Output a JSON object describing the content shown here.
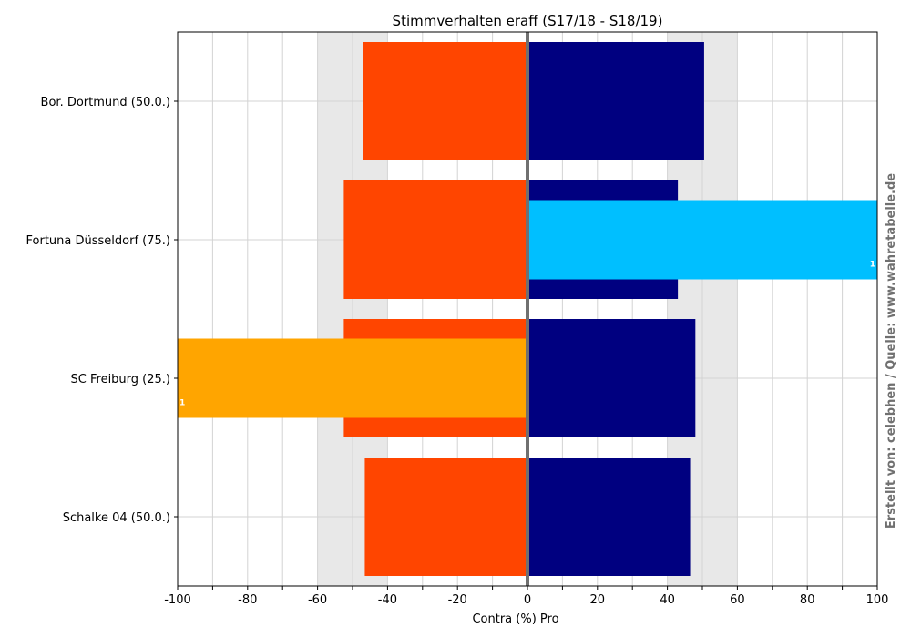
{
  "chart_data": {
    "type": "bar",
    "orientation": "horizontal",
    "title": "Stimmverhalten eraff (S17/18 - S18/19)",
    "xlabel": "Contra  (%)  Pro",
    "credit": "Erstellt von: celebhen / Quelle: www.wahretabelle.de",
    "xlim": [
      -100,
      100
    ],
    "xticks": [
      -100,
      -80,
      -60,
      -40,
      -20,
      0,
      20,
      40,
      60,
      80,
      100
    ],
    "grid": true,
    "shaded_bands": [
      [
        -60,
        -40
      ],
      [
        40,
        60
      ]
    ],
    "categories": [
      "Bor. Dortmund (50.0.)",
      "Fortuna Düsseldorf (75.)",
      "SC Freiburg (25.)",
      "Schalke 04 (50.0.)"
    ],
    "series": [
      {
        "color": "#ff4500",
        "values": [
          -47,
          -52.5,
          -52.5,
          -46.5
        ]
      },
      {
        "color": "#000080",
        "values": [
          50.5,
          43,
          48,
          46.5
        ]
      },
      {
        "color": "#00bfff",
        "values": [
          0,
          100,
          0,
          0
        ],
        "labels": [
          "",
          "1",
          "",
          ""
        ]
      },
      {
        "color": "#ffa500",
        "values": [
          0,
          0,
          -100,
          0
        ],
        "labels": [
          "",
          "",
          "1",
          ""
        ]
      }
    ],
    "colors": {
      "center_line": "#707070",
      "band": "#e8e8e8",
      "grid": "#d3d3d3"
    }
  }
}
